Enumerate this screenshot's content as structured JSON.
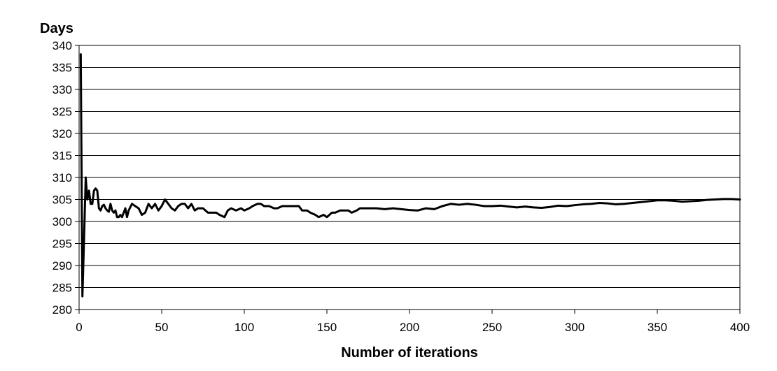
{
  "chart_data": {
    "type": "line",
    "title": "",
    "ylabel": "Days",
    "xlabel": "Number of iterations",
    "xlim": [
      0,
      400
    ],
    "ylim": [
      280,
      340
    ],
    "xticks": [
      0,
      50,
      100,
      150,
      200,
      250,
      300,
      350,
      400
    ],
    "yticks": [
      280,
      285,
      290,
      295,
      300,
      305,
      310,
      315,
      320,
      325,
      330,
      335,
      340
    ],
    "grid": "horizontal",
    "legend": "none",
    "line_color": "#000000",
    "series": [
      {
        "x": [
          1,
          2,
          3,
          4,
          5,
          6,
          7,
          8,
          9,
          10,
          11,
          12,
          13,
          14,
          15,
          16,
          17,
          18,
          19,
          20,
          21,
          22,
          23,
          24,
          25,
          26,
          27,
          28,
          29,
          30,
          32,
          34,
          36,
          38,
          40,
          42,
          44,
          46,
          48,
          50,
          52,
          54,
          56,
          58,
          60,
          62,
          64,
          66,
          68,
          70,
          72,
          75,
          78,
          80,
          83,
          85,
          88,
          90,
          92,
          95,
          98,
          100,
          103,
          105,
          108,
          110,
          112,
          115,
          118,
          120,
          123,
          125,
          128,
          130,
          133,
          135,
          138,
          140,
          143,
          145,
          148,
          150,
          153,
          155,
          158,
          160,
          163,
          165,
          168,
          170,
          175,
          180,
          185,
          190,
          195,
          200,
          205,
          210,
          215,
          220,
          225,
          230,
          235,
          240,
          245,
          250,
          255,
          260,
          265,
          270,
          275,
          280,
          285,
          290,
          295,
          300,
          305,
          310,
          315,
          320,
          325,
          330,
          335,
          340,
          345,
          350,
          355,
          360,
          365,
          370,
          375,
          380,
          385,
          390,
          395,
          400
        ],
        "y": [
          338,
          283,
          296,
          310,
          305,
          307,
          304,
          304,
          307,
          307.5,
          307,
          303,
          302.5,
          303.5,
          303.8,
          303,
          302.5,
          302.2,
          304,
          302.5,
          302,
          302.5,
          301,
          301,
          301.5,
          301,
          302,
          303,
          301,
          302.5,
          304,
          303.5,
          303,
          301.5,
          302,
          304,
          303,
          304,
          302.5,
          303.5,
          305,
          304,
          303,
          302.5,
          303.5,
          304,
          304,
          303,
          304,
          302.5,
          303,
          303,
          302,
          302,
          302,
          301.5,
          301,
          302.5,
          303,
          302.5,
          303,
          302.5,
          303,
          303.5,
          304,
          304,
          303.5,
          303.5,
          303,
          303,
          303.5,
          303.5,
          303.5,
          303.5,
          303.5,
          302.5,
          302.5,
          302,
          301.5,
          301,
          301.5,
          301,
          302,
          302,
          302.5,
          302.5,
          302.5,
          302,
          302.5,
          303,
          303,
          303,
          302.8,
          303,
          302.8,
          302.6,
          302.5,
          303,
          302.8,
          303.5,
          304,
          303.8,
          304,
          303.8,
          303.5,
          303.5,
          303.6,
          303.4,
          303.2,
          303.4,
          303.2,
          303.1,
          303.3,
          303.6,
          303.5,
          303.7,
          303.9,
          304,
          304.2,
          304.1,
          303.9,
          304,
          304.2,
          304.4,
          304.6,
          304.8,
          304.8,
          304.7,
          304.5,
          304.6,
          304.7,
          304.9,
          305,
          305.1,
          305.1,
          305
        ]
      }
    ]
  }
}
